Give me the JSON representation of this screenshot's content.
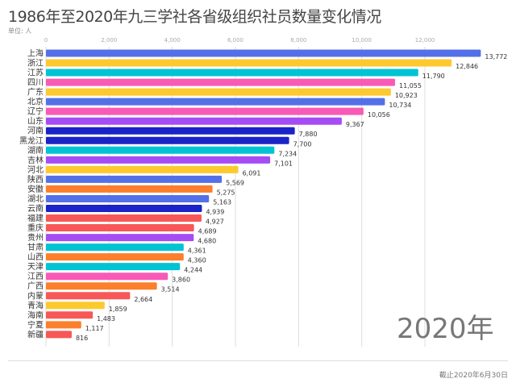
{
  "title": "1986年至2020年九三学社各省级组织社员数量变化情况",
  "unit_label": "单位: 人",
  "year_label": "2020年",
  "as_of": "截止2020年6月30日",
  "chart_data": {
    "type": "bar",
    "orientation": "horizontal",
    "title": "1986年至2020年九三学社各省级组织社员数量变化情况",
    "xlim": [
      0,
      13772
    ],
    "xticks": [
      0,
      2000,
      4000,
      6000,
      8000,
      10000,
      12000
    ],
    "xtick_labels": [
      "0",
      "2,000",
      "4,000",
      "6,000",
      "8,000",
      "10,000",
      "12,000"
    ],
    "grid": true,
    "categories": [
      "上海",
      "浙江",
      "江苏",
      "四川",
      "广东",
      "北京",
      "辽宁",
      "山东",
      "河南",
      "黑龙江",
      "湖南",
      "吉林",
      "河北",
      "陕西",
      "安徽",
      "湖北",
      "云南",
      "福建",
      "重庆",
      "贵州",
      "甘肃",
      "山西",
      "天津",
      "江西",
      "广西",
      "内蒙",
      "青海",
      "海南",
      "宁夏",
      "新疆"
    ],
    "values": [
      13772,
      12846,
      11790,
      11055,
      10923,
      10734,
      10056,
      9367,
      7880,
      7700,
      7234,
      7101,
      6091,
      5569,
      5275,
      5163,
      4939,
      4927,
      4689,
      4680,
      4361,
      4360,
      4244,
      3860,
      3514,
      2664,
      1859,
      1483,
      1117,
      816
    ],
    "value_labels": [
      "13,772",
      "12,846",
      "11,790",
      "11,055",
      "10,923",
      "10,734",
      "10,056",
      "9,367",
      "7,880",
      "7,700",
      "7,234",
      "7,101",
      "6,091",
      "5,569",
      "5,275",
      "5,163",
      "4,939",
      "4,927",
      "4,689",
      "4,680",
      "4,361",
      "4,360",
      "4,244",
      "3,860",
      "3,514",
      "2,664",
      "1,859",
      "1,483",
      "1,117",
      "816"
    ],
    "colors": [
      "#5470e8",
      "#fdc92e",
      "#00c4d3",
      "#f95ab6",
      "#fdc92e",
      "#5470e8",
      "#f95ab6",
      "#a64cf4",
      "#1a22c8",
      "#1a22c8",
      "#00c4d3",
      "#a64cf4",
      "#fdc92e",
      "#5470e8",
      "#fc7f2b",
      "#5470e8",
      "#1a22c8",
      "#f85757",
      "#f85757",
      "#a64cf4",
      "#00c4d3",
      "#fc7f2b",
      "#00c4d3",
      "#f95ab6",
      "#fc7f2b",
      "#f85757",
      "#fdc92e",
      "#f85757",
      "#fc7f2b",
      "#f85757"
    ]
  }
}
